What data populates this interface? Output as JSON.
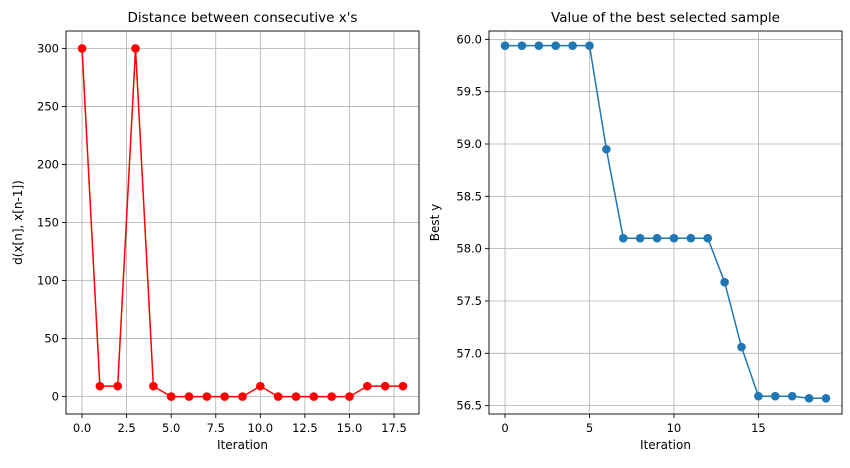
{
  "chart_data": [
    {
      "type": "line",
      "title": "Distance between consecutive x's",
      "xlabel": "Iteration",
      "ylabel": "d(x[n], x[n-1])",
      "xlim": [
        -0.9,
        18.9
      ],
      "ylim": [
        -15,
        315
      ],
      "xticks": [
        0.0,
        2.5,
        5.0,
        7.5,
        10.0,
        12.5,
        15.0,
        17.5
      ],
      "xtick_labels": [
        "0.0",
        "2.5",
        "5.0",
        "7.5",
        "10.0",
        "12.5",
        "15.0",
        "17.5"
      ],
      "yticks": [
        0,
        50,
        100,
        150,
        200,
        250,
        300
      ],
      "ytick_labels": [
        "0",
        "50",
        "100",
        "150",
        "200",
        "250",
        "300"
      ],
      "grid": true,
      "color": "#ff0000",
      "marker": "circle",
      "x": [
        0,
        1,
        2,
        3,
        4,
        5,
        6,
        7,
        8,
        9,
        10,
        11,
        12,
        13,
        14,
        15,
        16,
        17,
        18
      ],
      "y": [
        300,
        9,
        9,
        300,
        9,
        0,
        0,
        0,
        0,
        0,
        9,
        0,
        0,
        0,
        0,
        0,
        9,
        9,
        9
      ]
    },
    {
      "type": "line",
      "title": "Value of the best selected sample",
      "xlabel": "Iteration",
      "ylabel": "Best y",
      "xlim": [
        -0.95,
        19.95
      ],
      "ylim": [
        56.42,
        60.08
      ],
      "xticks": [
        0,
        5,
        10,
        15
      ],
      "xtick_labels": [
        "0",
        "5",
        "10",
        "15"
      ],
      "yticks": [
        56.5,
        57.0,
        57.5,
        58.0,
        58.5,
        59.0,
        59.5,
        60.0
      ],
      "ytick_labels": [
        "56.5",
        "57.0",
        "57.5",
        "58.0",
        "58.5",
        "59.0",
        "59.5",
        "60.0"
      ],
      "grid": true,
      "color": "#1f77b4",
      "marker": "circle",
      "x": [
        0,
        1,
        2,
        3,
        4,
        5,
        6,
        7,
        8,
        9,
        10,
        11,
        12,
        13,
        14,
        15,
        16,
        17,
        18,
        19
      ],
      "y": [
        59.94,
        59.94,
        59.94,
        59.94,
        59.94,
        59.94,
        58.95,
        58.1,
        58.1,
        58.1,
        58.1,
        58.1,
        58.1,
        57.68,
        57.06,
        56.59,
        56.59,
        56.59,
        56.57,
        56.57
      ]
    }
  ]
}
